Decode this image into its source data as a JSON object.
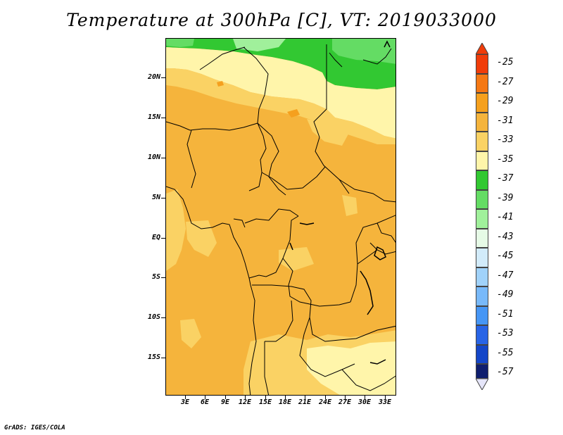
{
  "title": "Temperature at 300hPa [C], VT: 2019033000",
  "credit": "GrADS: IGES/COLA",
  "map": {
    "latitude_labels": [
      "20N",
      "15N",
      "10N",
      "5N",
      "EQ",
      "5S",
      "10S",
      "15S"
    ],
    "longitude_labels": [
      "3E",
      "6E",
      "9E",
      "12E",
      "15E",
      "18E",
      "21E",
      "24E",
      "27E",
      "30E",
      "33E"
    ]
  },
  "legend": {
    "labels": [
      "-25",
      "-27",
      "-29",
      "-31",
      "-33",
      "-35",
      "-37",
      "-39",
      "-41",
      "-43",
      "-45",
      "-47",
      "-49",
      "-51",
      "-53",
      "-55",
      "-57"
    ],
    "colors": [
      "#f03c0a",
      "#f57814",
      "#f5a01e",
      "#f5b43c",
      "#fad264",
      "#fff5aa",
      "#32c832",
      "#64dc64",
      "#a0f09b",
      "#e6fae6",
      "#d2ebfa",
      "#a0d2fa",
      "#78b9fa",
      "#4696f5",
      "#2864e6",
      "#1446c8",
      "#0f1e6e"
    ],
    "top_arrow_color": "#f03c0a",
    "bottom_arrow_color": "#e6e6fa"
  }
}
